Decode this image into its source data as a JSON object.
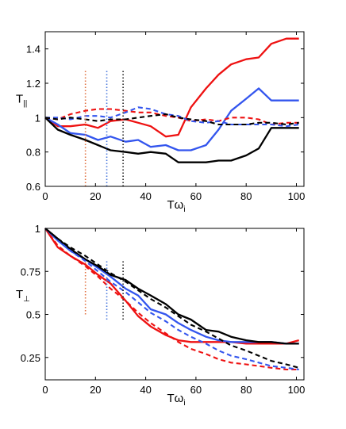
{
  "chart_data": [
    {
      "type": "line",
      "panel": "top",
      "ylabel": "T",
      "ylabel_subscript": "||",
      "xlabel": "Tω",
      "xlabel_subscript": "i",
      "xlim": [
        0,
        103
      ],
      "ylim": [
        0.6,
        1.5
      ],
      "xticks": [
        0,
        20,
        40,
        60,
        80,
        100
      ],
      "xtick_labels": [
        "0",
        "20",
        "40",
        "60",
        "80",
        "100"
      ],
      "yticks": [
        0.6,
        0.8,
        1,
        1.2,
        1.4
      ],
      "ytick_labels": [
        "0.6",
        "0.8",
        "1",
        "1.2",
        "1.4"
      ],
      "grid": false,
      "series": [
        {
          "color": "#ee1111",
          "dash": "solid",
          "x": [
            0,
            5,
            10,
            16,
            21,
            26,
            32,
            37,
            42,
            48,
            53,
            58,
            64,
            69,
            74,
            80,
            85,
            90,
            96,
            101
          ],
          "y": [
            1.0,
            0.95,
            0.95,
            0.96,
            0.94,
            0.98,
            0.99,
            0.97,
            0.95,
            0.89,
            0.9,
            1.06,
            1.17,
            1.25,
            1.31,
            1.34,
            1.35,
            1.43,
            1.46,
            1.46
          ]
        },
        {
          "color": "#3355ee",
          "dash": "solid",
          "x": [
            0,
            5,
            10,
            16,
            21,
            26,
            32,
            37,
            42,
            48,
            53,
            58,
            64,
            69,
            74,
            80,
            85,
            90,
            96,
            101
          ],
          "y": [
            1.0,
            0.96,
            0.91,
            0.9,
            0.87,
            0.89,
            0.86,
            0.87,
            0.83,
            0.84,
            0.81,
            0.81,
            0.84,
            0.93,
            1.04,
            1.11,
            1.17,
            1.1,
            1.1,
            1.1
          ]
        },
        {
          "color": "#000000",
          "dash": "solid",
          "x": [
            0,
            5,
            10,
            16,
            21,
            26,
            32,
            37,
            42,
            48,
            53,
            58,
            64,
            69,
            74,
            80,
            85,
            90,
            96,
            101
          ],
          "y": [
            1.0,
            0.93,
            0.9,
            0.87,
            0.84,
            0.81,
            0.8,
            0.79,
            0.8,
            0.79,
            0.74,
            0.74,
            0.74,
            0.75,
            0.75,
            0.78,
            0.82,
            0.94,
            0.94,
            0.94
          ]
        },
        {
          "color": "#ee1111",
          "dash": "dashed",
          "x": [
            0,
            5,
            10,
            16,
            21,
            26,
            32,
            37,
            42,
            48,
            53,
            58,
            64,
            69,
            74,
            80,
            85,
            90,
            96,
            101
          ],
          "y": [
            1.0,
            0.99,
            1.02,
            1.04,
            1.05,
            1.05,
            1.04,
            1.03,
            1.03,
            1.01,
            1.0,
            0.98,
            0.99,
            0.98,
            1.0,
            1.0,
            0.99,
            0.96,
            0.97,
            0.97
          ]
        },
        {
          "color": "#3355ee",
          "dash": "dashed",
          "x": [
            0,
            5,
            10,
            16,
            21,
            26,
            32,
            37,
            42,
            48,
            53,
            58,
            64,
            69,
            74,
            80,
            85,
            90,
            96,
            101
          ],
          "y": [
            1.0,
            1.0,
            0.99,
            1.01,
            1.01,
            1.0,
            1.03,
            1.06,
            1.05,
            1.02,
            1.01,
            0.98,
            0.97,
            0.98,
            0.96,
            0.96,
            0.96,
            0.96,
            0.95,
            0.96
          ]
        },
        {
          "color": "#000000",
          "dash": "dashed",
          "x": [
            0,
            5,
            10,
            16,
            21,
            26,
            32,
            37,
            42,
            48,
            53,
            58,
            64,
            69,
            74,
            80,
            85,
            90,
            96,
            101
          ],
          "y": [
            1.0,
            0.99,
            1.0,
            0.99,
            0.98,
            0.99,
            0.99,
            1.0,
            1.01,
            1.02,
            1.0,
            0.99,
            0.98,
            0.96,
            0.96,
            0.96,
            0.97,
            0.97,
            0.96,
            0.97
          ]
        }
      ],
      "markers": [
        {
          "x": 16,
          "color": "#e07040",
          "y_from": 0.6,
          "y_to": 1.28
        },
        {
          "x": 24.5,
          "color": "#4a78dd",
          "y_from": 0.6,
          "y_to": 1.28
        },
        {
          "x": 31,
          "color": "#222222",
          "y_from": 0.6,
          "y_to": 1.28
        }
      ]
    },
    {
      "type": "line",
      "panel": "bottom",
      "ylabel": "T",
      "ylabel_subscript": "⊥",
      "xlabel": "Tω",
      "xlabel_subscript": "i",
      "xlim": [
        0,
        103
      ],
      "ylim": [
        0.12,
        1.0
      ],
      "xticks": [
        0,
        20,
        40,
        60,
        80,
        100
      ],
      "xtick_labels": [
        "0",
        "20",
        "40",
        "60",
        "80",
        "100"
      ],
      "yticks": [
        0.25,
        0.5,
        0.75,
        1
      ],
      "ytick_labels": [
        "0.25",
        "0.5",
        "0.75",
        "1"
      ],
      "grid": false,
      "series": [
        {
          "color": "#ee1111",
          "dash": "solid",
          "x": [
            0,
            5,
            10,
            16,
            21,
            26,
            32,
            37,
            42,
            48,
            53,
            58,
            64,
            69,
            74,
            80,
            85,
            90,
            96,
            101
          ],
          "y": [
            1.0,
            0.89,
            0.84,
            0.79,
            0.73,
            0.68,
            0.58,
            0.49,
            0.43,
            0.38,
            0.35,
            0.34,
            0.34,
            0.34,
            0.34,
            0.33,
            0.33,
            0.33,
            0.33,
            0.35
          ]
        },
        {
          "color": "#3355ee",
          "dash": "solid",
          "x": [
            0,
            5,
            10,
            16,
            21,
            26,
            32,
            37,
            42,
            48,
            53,
            58,
            64,
            69,
            74,
            80,
            85,
            90,
            96,
            101
          ],
          "y": [
            1.0,
            0.93,
            0.87,
            0.82,
            0.77,
            0.72,
            0.65,
            0.61,
            0.53,
            0.5,
            0.45,
            0.41,
            0.37,
            0.35,
            0.34,
            0.34,
            0.34,
            0.34,
            0.33,
            0.33
          ]
        },
        {
          "color": "#000000",
          "dash": "solid",
          "x": [
            0,
            5,
            10,
            16,
            21,
            26,
            32,
            37,
            42,
            48,
            53,
            58,
            64,
            69,
            74,
            80,
            85,
            90,
            96,
            101
          ],
          "y": [
            1.0,
            0.94,
            0.88,
            0.82,
            0.78,
            0.73,
            0.7,
            0.65,
            0.61,
            0.56,
            0.5,
            0.47,
            0.41,
            0.4,
            0.37,
            0.35,
            0.34,
            0.34,
            0.33,
            0.33
          ]
        },
        {
          "color": "#ee1111",
          "dash": "dashed",
          "x": [
            0,
            5,
            10,
            16,
            21,
            26,
            32,
            37,
            42,
            48,
            53,
            58,
            64,
            69,
            74,
            80,
            85,
            90,
            96,
            101
          ],
          "y": [
            1.0,
            0.9,
            0.84,
            0.78,
            0.72,
            0.65,
            0.58,
            0.51,
            0.45,
            0.39,
            0.34,
            0.3,
            0.27,
            0.24,
            0.22,
            0.21,
            0.2,
            0.19,
            0.18,
            0.18
          ]
        },
        {
          "color": "#3355ee",
          "dash": "dashed",
          "x": [
            0,
            5,
            10,
            16,
            21,
            26,
            32,
            37,
            42,
            48,
            53,
            58,
            64,
            69,
            74,
            80,
            85,
            90,
            96,
            101
          ],
          "y": [
            1.0,
            0.93,
            0.87,
            0.81,
            0.75,
            0.69,
            0.63,
            0.57,
            0.51,
            0.46,
            0.41,
            0.37,
            0.33,
            0.29,
            0.26,
            0.24,
            0.22,
            0.2,
            0.19,
            0.18
          ]
        },
        {
          "color": "#000000",
          "dash": "dashed",
          "x": [
            0,
            5,
            10,
            16,
            21,
            26,
            32,
            37,
            42,
            48,
            53,
            58,
            64,
            69,
            74,
            80,
            85,
            90,
            96,
            101
          ],
          "y": [
            1.0,
            0.94,
            0.89,
            0.84,
            0.79,
            0.74,
            0.69,
            0.64,
            0.59,
            0.54,
            0.49,
            0.44,
            0.4,
            0.36,
            0.32,
            0.29,
            0.26,
            0.23,
            0.21,
            0.19
          ]
        }
      ],
      "markers": [
        {
          "x": 16,
          "color": "#e07040",
          "y_from": 0.5,
          "y_to": 0.81
        },
        {
          "x": 24.5,
          "color": "#4a78dd",
          "y_from": 0.47,
          "y_to": 0.81
        },
        {
          "x": 31,
          "color": "#222222",
          "y_from": 0.47,
          "y_to": 0.81
        }
      ]
    }
  ]
}
